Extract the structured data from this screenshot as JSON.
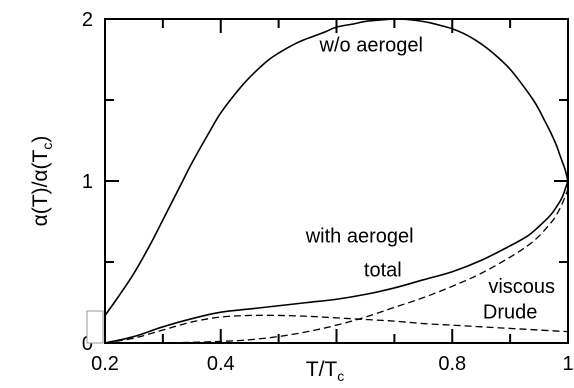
{
  "chart_data": {
    "type": "line",
    "xlabel": "T/T",
    "xlabel_sub": "c",
    "ylabel": "α(T)/α(T",
    "ylabel_sub": "c",
    "ylabel_close": ")",
    "xlim": [
      0.2,
      1.0
    ],
    "ylim": [
      0,
      2
    ],
    "x_ticks": [
      {
        "value": 0.2,
        "label": "0.2"
      },
      {
        "value": 0.4,
        "label": "0.4"
      },
      {
        "value": 0.6,
        "label": ""
      },
      {
        "value": 0.8,
        "label": "0.8"
      },
      {
        "value": 1.0,
        "label": "1"
      }
    ],
    "x_minor_ticks": [
      0.3,
      0.5,
      0.7,
      0.9
    ],
    "y_ticks": [
      {
        "value": 0,
        "label": "0"
      },
      {
        "value": 1,
        "label": "1"
      },
      {
        "value": 2,
        "label": "2"
      }
    ],
    "y_minor_ticks": [
      0.5,
      1.5
    ],
    "grid": false,
    "legend": "none",
    "series": [
      {
        "name": "w/o aerogel",
        "style": "solid",
        "x": [
          0.2,
          0.22,
          0.25,
          0.28,
          0.3,
          0.33,
          0.35,
          0.38,
          0.4,
          0.43,
          0.45,
          0.48,
          0.5,
          0.53,
          0.55,
          0.58,
          0.6,
          0.63,
          0.65,
          0.68,
          0.7,
          0.72,
          0.74,
          0.76,
          0.78,
          0.8,
          0.82,
          0.84,
          0.86,
          0.88,
          0.9,
          0.92,
          0.94,
          0.95,
          0.96,
          0.97,
          0.98,
          0.985,
          0.99,
          0.995,
          1.0
        ],
        "y": [
          0.17,
          0.27,
          0.43,
          0.62,
          0.76,
          0.97,
          1.11,
          1.3,
          1.42,
          1.56,
          1.64,
          1.74,
          1.79,
          1.85,
          1.88,
          1.92,
          1.95,
          1.97,
          1.985,
          1.995,
          2.0,
          1.998,
          1.99,
          1.978,
          1.96,
          1.94,
          1.91,
          1.87,
          1.82,
          1.76,
          1.69,
          1.6,
          1.5,
          1.44,
          1.37,
          1.3,
          1.22,
          1.17,
          1.12,
          1.07,
          1.0
        ]
      },
      {
        "name": "total",
        "style": "solid",
        "x": [
          0.2,
          0.25,
          0.3,
          0.35,
          0.4,
          0.45,
          0.5,
          0.55,
          0.6,
          0.65,
          0.7,
          0.75,
          0.8,
          0.85,
          0.9,
          0.93,
          0.95,
          0.97,
          0.98,
          0.99,
          1.0
        ],
        "y": [
          0.0,
          0.04,
          0.1,
          0.15,
          0.19,
          0.21,
          0.23,
          0.25,
          0.27,
          0.3,
          0.34,
          0.39,
          0.44,
          0.51,
          0.6,
          0.66,
          0.72,
          0.79,
          0.84,
          0.9,
          1.0
        ]
      },
      {
        "name": "viscous",
        "style": "dashed",
        "x": [
          0.2,
          0.3,
          0.4,
          0.45,
          0.5,
          0.55,
          0.6,
          0.65,
          0.7,
          0.75,
          0.8,
          0.85,
          0.9,
          0.93,
          0.95,
          0.97,
          0.98,
          0.99,
          1.0
        ],
        "y": [
          0.0,
          0.0,
          0.01,
          0.02,
          0.04,
          0.07,
          0.11,
          0.16,
          0.22,
          0.28,
          0.35,
          0.43,
          0.53,
          0.6,
          0.66,
          0.74,
          0.79,
          0.86,
          0.95
        ]
      },
      {
        "name": "Drude",
        "style": "dashed",
        "x": [
          0.2,
          0.25,
          0.3,
          0.35,
          0.4,
          0.45,
          0.5,
          0.55,
          0.6,
          0.65,
          0.7,
          0.75,
          0.8,
          0.85,
          0.9,
          0.95,
          1.0
        ],
        "y": [
          0.0,
          0.03,
          0.08,
          0.13,
          0.16,
          0.17,
          0.17,
          0.165,
          0.155,
          0.145,
          0.135,
          0.12,
          0.11,
          0.1,
          0.09,
          0.08,
          0.07
        ]
      }
    ],
    "annotations": [
      {
        "text": "w/o aerogel",
        "x": 0.66,
        "y": 1.8
      },
      {
        "text": "with aerogel",
        "x": 0.64,
        "y": 0.62
      },
      {
        "text": "total",
        "x": 0.68,
        "y": 0.41
      },
      {
        "text": "viscous",
        "x": 0.92,
        "y": 0.31
      },
      {
        "text": "Drude",
        "x": 0.9,
        "y": 0.15
      }
    ]
  }
}
